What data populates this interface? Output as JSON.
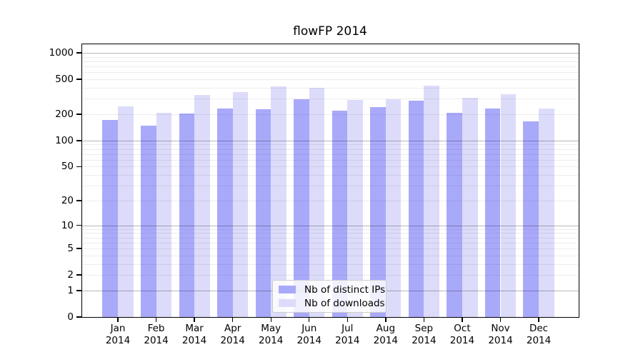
{
  "title": "flowFP 2014",
  "legend": {
    "items": [
      {
        "label": "Nb of distinct IPs",
        "color": "#a9a9fa"
      },
      {
        "label": "Nb of downloads",
        "color": "#dcdcfa"
      }
    ]
  },
  "chart_data": {
    "type": "bar",
    "title": "flowFP 2014",
    "categories": [
      "Jan",
      "Feb",
      "Mar",
      "Apr",
      "May",
      "Jun",
      "Jul",
      "Aug",
      "Sep",
      "Oct",
      "Nov",
      "Dec"
    ],
    "category_year": "2014",
    "series": [
      {
        "name": "Nb of distinct IPs",
        "color": "#a9a9fa",
        "values": [
          172,
          149,
          205,
          232,
          230,
          296,
          220,
          241,
          284,
          208,
          233,
          167
        ]
      },
      {
        "name": "Nb of downloads",
        "color": "#dcdcfa",
        "values": [
          246,
          207,
          332,
          357,
          417,
          401,
          289,
          296,
          421,
          307,
          337,
          233
        ]
      }
    ],
    "yscale": "log1p",
    "yticks": [
      0,
      1,
      2,
      5,
      10,
      20,
      50,
      100,
      200,
      500,
      1000
    ],
    "ylim": [
      0,
      1276
    ],
    "grid": true,
    "grid_minor_values": [
      2,
      3,
      4,
      5,
      6,
      7,
      8,
      9,
      20,
      30,
      40,
      50,
      60,
      70,
      80,
      90,
      200,
      300,
      400,
      500,
      600,
      700,
      800,
      900
    ],
    "grid_major_values": [
      1,
      10,
      100,
      1000
    ],
    "legend_position": "bottom-center",
    "colors": {
      "axis": "#000000",
      "grid_major": "rgba(0,0,0,0.28)",
      "grid_minor": "rgba(0,0,0,0.07)"
    }
  }
}
